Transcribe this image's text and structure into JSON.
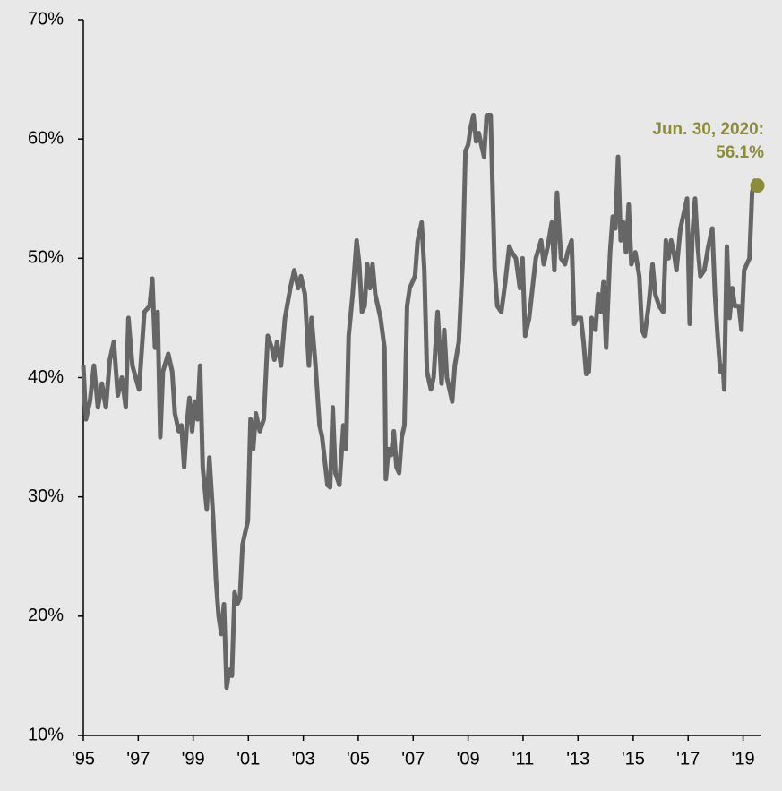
{
  "chart_data": {
    "type": "line",
    "color": "#666666",
    "marker_color": "#8c8c3c",
    "annotation": [
      "Jun. 30, 2020:",
      "56.1%"
    ],
    "xlim": [
      1995,
      2020.55
    ],
    "xticks": [
      {
        "value": 1995,
        "label": "'95"
      },
      {
        "value": 1997.07,
        "label": "'97"
      },
      {
        "value": 1999.14,
        "label": "'99"
      },
      {
        "value": 2001.22,
        "label": "'01"
      },
      {
        "value": 2003.29,
        "label": "'03"
      },
      {
        "value": 2005.36,
        "label": "'05"
      },
      {
        "value": 2007.43,
        "label": "'07"
      },
      {
        "value": 2009.5,
        "label": "'09"
      },
      {
        "value": 2011.57,
        "label": "'11"
      },
      {
        "value": 2013.64,
        "label": "'13"
      },
      {
        "value": 2015.72,
        "label": "'15"
      },
      {
        "value": 2017.79,
        "label": "'17"
      },
      {
        "value": 2019.86,
        "label": "'19"
      }
    ],
    "ylim": [
      10,
      70
    ],
    "yticks": [
      {
        "value": 10,
        "label": "10%"
      },
      {
        "value": 20,
        "label": "20%"
      },
      {
        "value": 30,
        "label": "30%"
      },
      {
        "value": 40,
        "label": "40%"
      },
      {
        "value": 50,
        "label": "50%"
      },
      {
        "value": 60,
        "label": "60%"
      },
      {
        "value": 70,
        "label": "70%"
      }
    ],
    "x": [
      1995.0,
      1995.1,
      1995.25,
      1995.4,
      1995.55,
      1995.7,
      1995.85,
      1996.0,
      1996.15,
      1996.3,
      1996.45,
      1996.6,
      1996.7,
      1996.85,
      1997.1,
      1997.3,
      1997.5,
      1997.6,
      1997.7,
      1997.8,
      1997.9,
      1998.0,
      1998.2,
      1998.35,
      1998.45,
      1998.6,
      1998.7,
      1998.8,
      1998.9,
      1999.0,
      1999.1,
      1999.2,
      1999.3,
      1999.4,
      1999.5,
      1999.65,
      1999.75,
      1999.9,
      2000.0,
      2000.1,
      2000.2,
      2000.3,
      2000.4,
      2000.5,
      2000.6,
      2000.7,
      2000.8,
      2000.9,
      2001.0,
      2001.1,
      2001.2,
      2001.3,
      2001.4,
      2001.5,
      2001.65,
      2001.8,
      2001.95,
      2002.1,
      2002.2,
      2002.3,
      2002.45,
      2002.6,
      2002.8,
      2002.95,
      2003.1,
      2003.2,
      2003.35,
      2003.5,
      2003.6,
      2003.75,
      2003.9,
      2004.0,
      2004.1,
      2004.2,
      2004.3,
      2004.4,
      2004.5,
      2004.65,
      2004.8,
      2004.9,
      2005.0,
      2005.15,
      2005.3,
      2005.4,
      2005.5,
      2005.6,
      2005.7,
      2005.8,
      2005.9,
      2006.0,
      2006.2,
      2006.35,
      2006.4,
      2006.5,
      2006.6,
      2006.7,
      2006.8,
      2006.9,
      2007.0,
      2007.1,
      2007.2,
      2007.3,
      2007.5,
      2007.6,
      2007.75,
      2007.85,
      2007.95,
      2008.1,
      2008.2,
      2008.35,
      2008.5,
      2008.6,
      2008.7,
      2008.9,
      2009.0,
      2009.15,
      2009.3,
      2009.4,
      2009.5,
      2009.6,
      2009.7,
      2009.8,
      2009.9,
      2010.0,
      2010.1,
      2010.2,
      2010.35,
      2010.5,
      2010.6,
      2010.75,
      2010.9,
      2011.05,
      2011.15,
      2011.3,
      2011.45,
      2011.55,
      2011.65,
      2011.8,
      2011.95,
      2012.05,
      2012.25,
      2012.35,
      2012.5,
      2012.65,
      2012.75,
      2012.85,
      2013.0,
      2013.15,
      2013.25,
      2013.4,
      2013.5,
      2013.6,
      2013.75,
      2013.85,
      2013.95,
      2014.05,
      2014.15,
      2014.3,
      2014.4,
      2014.5,
      2014.6,
      2014.7,
      2014.85,
      2014.95,
      2015.05,
      2015.15,
      2015.25,
      2015.35,
      2015.45,
      2015.55,
      2015.65,
      2015.8,
      2015.95,
      2016.05,
      2016.15,
      2016.3,
      2016.45,
      2016.55,
      2016.7,
      2016.85,
      2016.95,
      2017.05,
      2017.15,
      2017.25,
      2017.35,
      2017.5,
      2017.65,
      2017.75,
      2017.85,
      2017.95,
      2018.05,
      2018.15,
      2018.25,
      2018.4,
      2018.55,
      2018.7,
      2018.8,
      2018.9,
      2019.0,
      2019.1,
      2019.15,
      2019.25,
      2019.35,
      2019.45,
      2019.55,
      2019.7,
      2019.8,
      2019.9,
      2020.1,
      2020.2,
      2020.3,
      2020.4
    ],
    "values": [
      41,
      36.5,
      38,
      41,
      37.5,
      39.5,
      37.5,
      41.5,
      43,
      38.5,
      40,
      37.5,
      45,
      41,
      39,
      45.5,
      46,
      48.3,
      42.5,
      45.5,
      35,
      40.5,
      42,
      40.5,
      37,
      35.5,
      36,
      32.5,
      36,
      38.3,
      35.5,
      38,
      36.5,
      41,
      32.5,
      29,
      33.3,
      28,
      23,
      20,
      18.5,
      21,
      14,
      15.5,
      15,
      22,
      21,
      21.5,
      26,
      27,
      28,
      36.5,
      34,
      37,
      35.5,
      36.5,
      43.5,
      42.5,
      41.5,
      43,
      41,
      45,
      47.5,
      49,
      47.5,
      48.5,
      47,
      41,
      45,
      41,
      36,
      35,
      33,
      31,
      30.8,
      37.5,
      32,
      31,
      36,
      34,
      43.5,
      47,
      51.5,
      49.5,
      45.5,
      46,
      49.5,
      47.5,
      49.5,
      47,
      45,
      42.5,
      31.5,
      34,
      33.5,
      35.5,
      32.5,
      32,
      35,
      36,
      46,
      47.5,
      48.5,
      51.5,
      53,
      49,
      40.5,
      39,
      40,
      45.5,
      39.5,
      44,
      40,
      38,
      41,
      43,
      50,
      59,
      59.5,
      61,
      62,
      59.8,
      60.5,
      59.5,
      58.5,
      62,
      62,
      49,
      46,
      45.5,
      48,
      51,
      50.5,
      50,
      47.5,
      50,
      43.5,
      45,
      48,
      50,
      51.5,
      49.5,
      51,
      53,
      49,
      55.5,
      50,
      49.5,
      50.5,
      51.5,
      44.5,
      45,
      45,
      43,
      40.3,
      40.5,
      45,
      44,
      47,
      45.5,
      48,
      42.5,
      50.5,
      53.5,
      52.5,
      58.5,
      51.5,
      53,
      50.5,
      54.5,
      49.5,
      50.5,
      48.5,
      44,
      43.5,
      46,
      49.5,
      47,
      46,
      45.5,
      51.5,
      50,
      51.5,
      50.5,
      49,
      52.5,
      54,
      55,
      44.5,
      52,
      55,
      51,
      48.5,
      49,
      51,
      52.5,
      47,
      43.5,
      40.5,
      41,
      39,
      51,
      45,
      47.5,
      46,
      46,
      44,
      49,
      50,
      55.5,
      56.5,
      56.1
    ]
  }
}
